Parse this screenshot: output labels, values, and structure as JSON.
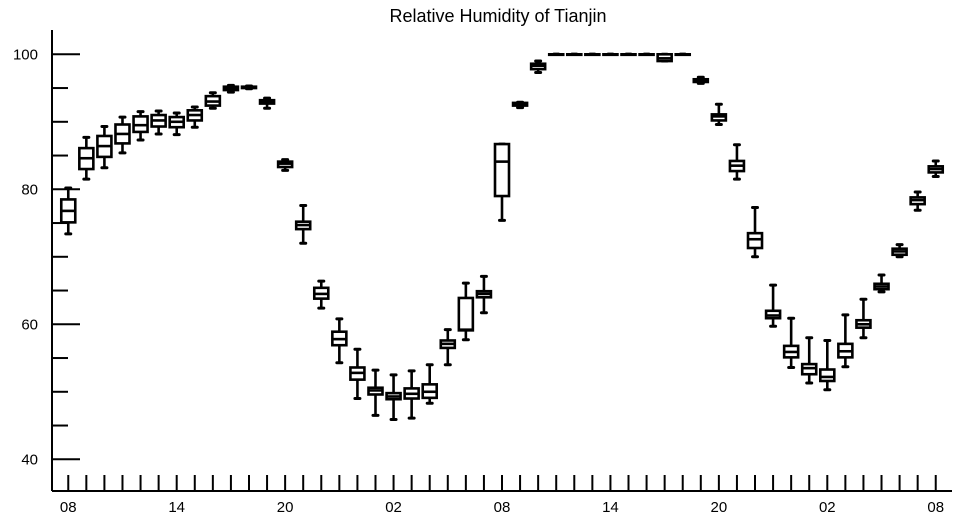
{
  "chart_data": {
    "type": "box",
    "title": "Relative Humidity of Tianjin",
    "xlabel": "",
    "ylabel": "",
    "ylim": [
      35.3,
      103.6
    ],
    "yticks": [
      40,
      60,
      80,
      100
    ],
    "ytick_labels": [
      "40",
      "60",
      "80",
      "100"
    ],
    "yminor_step": 5,
    "xtick_labels": [
      "08",
      "14",
      "20",
      "02",
      "08",
      "14",
      "20",
      "02",
      "08"
    ],
    "xtick_positions": [
      0,
      6,
      12,
      18,
      24,
      30,
      36,
      42,
      48
    ],
    "xlim": [
      -0.9,
      48.9
    ],
    "boxes": [
      {
        "x": 0,
        "min": 73.4,
        "q1": 75.1,
        "median": 76.8,
        "q3": 78.5,
        "max": 80.2
      },
      {
        "x": 1,
        "min": 81.5,
        "q1": 83.0,
        "median": 84.6,
        "q3": 86.1,
        "max": 87.7
      },
      {
        "x": 2,
        "min": 83.2,
        "q1": 84.8,
        "median": 86.4,
        "q3": 87.9,
        "max": 89.3
      },
      {
        "x": 3,
        "min": 85.4,
        "q1": 86.8,
        "median": 88.2,
        "q3": 89.6,
        "max": 90.7
      },
      {
        "x": 4,
        "min": 87.3,
        "q1": 88.5,
        "median": 89.5,
        "q3": 90.8,
        "max": 91.5
      },
      {
        "x": 5,
        "min": 88.2,
        "q1": 89.3,
        "median": 90.2,
        "q3": 91.0,
        "max": 91.6
      },
      {
        "x": 6,
        "min": 88.1,
        "q1": 89.2,
        "median": 90.0,
        "q3": 90.7,
        "max": 91.3
      },
      {
        "x": 7,
        "min": 89.2,
        "q1": 90.2,
        "median": 91.0,
        "q3": 91.7,
        "max": 92.2
      },
      {
        "x": 8,
        "min": 92.0,
        "q1": 92.4,
        "median": 93.0,
        "q3": 93.8,
        "max": 94.3
      },
      {
        "x": 9,
        "min": 94.4,
        "q1": 94.7,
        "median": 95.0,
        "q3": 95.2,
        "max": 95.4
      },
      {
        "x": 10,
        "min": 94.9,
        "q1": 95.0,
        "median": 95.1,
        "q3": 95.2,
        "max": 95.3
      },
      {
        "x": 11,
        "min": 92.0,
        "q1": 92.7,
        "median": 92.9,
        "q3": 93.2,
        "max": 93.5
      },
      {
        "x": 12,
        "min": 82.8,
        "q1": 83.3,
        "median": 83.8,
        "q3": 84.1,
        "max": 84.4
      },
      {
        "x": 13,
        "min": 72.0,
        "q1": 74.1,
        "median": 74.7,
        "q3": 75.2,
        "max": 77.6
      },
      {
        "x": 14,
        "min": 62.4,
        "q1": 63.8,
        "median": 64.5,
        "q3": 65.4,
        "max": 66.4
      },
      {
        "x": 15,
        "min": 54.3,
        "q1": 56.9,
        "median": 57.8,
        "q3": 58.9,
        "max": 60.8
      },
      {
        "x": 16,
        "min": 49.0,
        "q1": 51.8,
        "median": 52.8,
        "q3": 53.6,
        "max": 56.3
      },
      {
        "x": 17,
        "min": 46.5,
        "q1": 49.6,
        "median": 50.2,
        "q3": 50.6,
        "max": 53.2
      },
      {
        "x": 18,
        "min": 45.9,
        "q1": 48.9,
        "median": 49.3,
        "q3": 49.8,
        "max": 52.5
      },
      {
        "x": 19,
        "min": 46.1,
        "q1": 49.0,
        "median": 49.7,
        "q3": 50.5,
        "max": 53.1
      },
      {
        "x": 20,
        "min": 48.3,
        "q1": 49.1,
        "median": 50.0,
        "q3": 51.1,
        "max": 54.0
      },
      {
        "x": 21,
        "min": 54.0,
        "q1": 56.5,
        "median": 57.1,
        "q3": 57.6,
        "max": 59.2
      },
      {
        "x": 22,
        "min": 57.7,
        "q1": 59.1,
        "median": 59.2,
        "q3": 63.9,
        "max": 66.1
      },
      {
        "x": 23,
        "min": 61.7,
        "q1": 64.0,
        "median": 64.5,
        "q3": 64.9,
        "max": 67.1
      },
      {
        "x": 24,
        "min": 75.4,
        "q1": 79.0,
        "median": 84.1,
        "q3": 86.7,
        "max": 86.7
      },
      {
        "x": 25,
        "min": 92.1,
        "q1": 92.4,
        "median": 92.6,
        "q3": 92.8,
        "max": 92.9
      },
      {
        "x": 26,
        "min": 97.3,
        "q1": 97.8,
        "median": 98.3,
        "q3": 98.6,
        "max": 99.0
      },
      {
        "x": 27,
        "min": 100.0,
        "q1": 100.0,
        "median": 100.0,
        "q3": 100.0,
        "max": 100.0
      },
      {
        "x": 28,
        "min": 100.0,
        "q1": 100.0,
        "median": 100.0,
        "q3": 100.0,
        "max": 100.0
      },
      {
        "x": 29,
        "min": 100.0,
        "q1": 100.0,
        "median": 100.0,
        "q3": 100.0,
        "max": 100.0
      },
      {
        "x": 30,
        "min": 100.0,
        "q1": 100.0,
        "median": 100.0,
        "q3": 100.0,
        "max": 100.0
      },
      {
        "x": 31,
        "min": 100.0,
        "q1": 100.0,
        "median": 100.0,
        "q3": 100.0,
        "max": 100.0
      },
      {
        "x": 32,
        "min": 100.0,
        "q1": 100.0,
        "median": 100.0,
        "q3": 100.0,
        "max": 100.0
      },
      {
        "x": 33,
        "min": 99.0,
        "q1": 99.0,
        "median": 99.4,
        "q3": 100.0,
        "max": 100.0
      },
      {
        "x": 34,
        "min": 100.0,
        "q1": 100.0,
        "median": 100.0,
        "q3": 100.0,
        "max": 100.0
      },
      {
        "x": 35,
        "min": 95.7,
        "q1": 95.9,
        "median": 96.1,
        "q3": 96.3,
        "max": 96.6
      },
      {
        "x": 36,
        "min": 89.6,
        "q1": 90.2,
        "median": 90.8,
        "q3": 91.1,
        "max": 92.6
      },
      {
        "x": 37,
        "min": 81.5,
        "q1": 82.7,
        "median": 83.5,
        "q3": 84.2,
        "max": 86.6
      },
      {
        "x": 38,
        "min": 70.0,
        "q1": 71.3,
        "median": 72.6,
        "q3": 73.5,
        "max": 77.3
      },
      {
        "x": 39,
        "min": 59.7,
        "q1": 60.9,
        "median": 61.3,
        "q3": 62.0,
        "max": 65.8
      },
      {
        "x": 40,
        "min": 53.6,
        "q1": 55.1,
        "median": 55.9,
        "q3": 56.8,
        "max": 60.9
      },
      {
        "x": 41,
        "min": 51.3,
        "q1": 52.6,
        "median": 53.5,
        "q3": 54.1,
        "max": 58.0
      },
      {
        "x": 42,
        "min": 50.3,
        "q1": 51.6,
        "median": 52.2,
        "q3": 53.3,
        "max": 57.6
      },
      {
        "x": 43,
        "min": 53.7,
        "q1": 55.1,
        "median": 56.0,
        "q3": 57.1,
        "max": 61.4
      },
      {
        "x": 44,
        "min": 58.0,
        "q1": 59.5,
        "median": 60.0,
        "q3": 60.6,
        "max": 63.7
      },
      {
        "x": 45,
        "min": 64.8,
        "q1": 65.2,
        "median": 65.6,
        "q3": 66.0,
        "max": 67.3
      },
      {
        "x": 46,
        "min": 70.0,
        "q1": 70.3,
        "median": 70.8,
        "q3": 71.2,
        "max": 71.8
      },
      {
        "x": 47,
        "min": 76.9,
        "q1": 77.8,
        "median": 78.4,
        "q3": 78.8,
        "max": 79.6
      },
      {
        "x": 48,
        "min": 81.9,
        "q1": 82.5,
        "median": 83.0,
        "q3": 83.4,
        "max": 84.2
      }
    ]
  }
}
